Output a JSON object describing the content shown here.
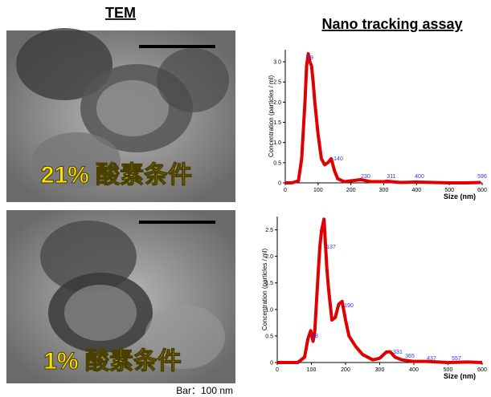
{
  "header": {
    "tem_title": "TEM",
    "nta_title": "Nano tracking assay"
  },
  "images": [
    {
      "label": "21% 酸素条件"
    },
    {
      "label": "1% 酸素条件"
    }
  ],
  "scale_note": "Bar：100 nm",
  "chart_data": [
    {
      "type": "line",
      "color": "#e00000",
      "x_label": "Size (nm)",
      "y_label": "Concentration (particles / ml)",
      "x": [
        0,
        20,
        40,
        50,
        60,
        65,
        70,
        75,
        80,
        85,
        90,
        100,
        110,
        120,
        130,
        140,
        150,
        160,
        180,
        200,
        230,
        260,
        300,
        311,
        350,
        400,
        450,
        500,
        550,
        596
      ],
      "values": [
        0,
        0,
        0.05,
        0.6,
        2.0,
        2.9,
        3.2,
        3.0,
        2.9,
        2.5,
        2.0,
        1.2,
        0.6,
        0.45,
        0.5,
        0.6,
        0.3,
        0.1,
        0.03,
        0.05,
        0.08,
        0.03,
        0.03,
        0.04,
        0.01,
        0.02,
        0.01,
        0,
        0,
        0.01
      ],
      "xlim": [
        0,
        600
      ],
      "xticks": [
        0,
        100,
        200,
        300,
        400,
        500,
        600
      ],
      "ylim": [
        0,
        3.3
      ],
      "yticks": [
        0,
        0.5,
        {
          "value": 1,
          "label": "1.0"
        },
        1.5,
        {
          "value": 2,
          "label": "2.0"
        },
        2.5,
        {
          "value": 3,
          "label": "3.0"
        }
      ],
      "annotations": [
        "69",
        "140",
        "230",
        "311",
        "400",
        "596"
      ]
    },
    {
      "type": "line",
      "color": "#e00000",
      "x_label": "Size (nm)",
      "y_label": "Concentration (particles / ml)",
      "x": [
        0,
        60,
        80,
        90,
        98,
        105,
        110,
        120,
        125,
        130,
        137,
        145,
        150,
        160,
        170,
        180,
        190,
        200,
        210,
        230,
        250,
        280,
        300,
        320,
        331,
        345,
        365,
        400,
        437,
        500,
        557,
        600
      ],
      "values": [
        0,
        0,
        0.1,
        0.45,
        0.6,
        0.4,
        0.6,
        1.7,
        2.2,
        2.5,
        2.7,
        1.8,
        1.4,
        0.8,
        0.85,
        1.1,
        1.15,
        0.8,
        0.5,
        0.3,
        0.15,
        0.05,
        0.08,
        0.2,
        0.2,
        0.1,
        0.05,
        0.02,
        0.02,
        0,
        0.01,
        0
      ],
      "xlim": [
        0,
        600
      ],
      "xticks": [
        0,
        100,
        200,
        300,
        400,
        500,
        600
      ],
      "ylim": [
        0,
        2.75
      ],
      "yticks": [
        0,
        0.5,
        {
          "value": 1,
          "label": "1.0"
        },
        1.5,
        {
          "value": 2,
          "label": "2.0"
        },
        2.5
      ],
      "annotations": [
        "98",
        "137",
        "190",
        "331",
        "365",
        "437",
        "557"
      ]
    }
  ]
}
